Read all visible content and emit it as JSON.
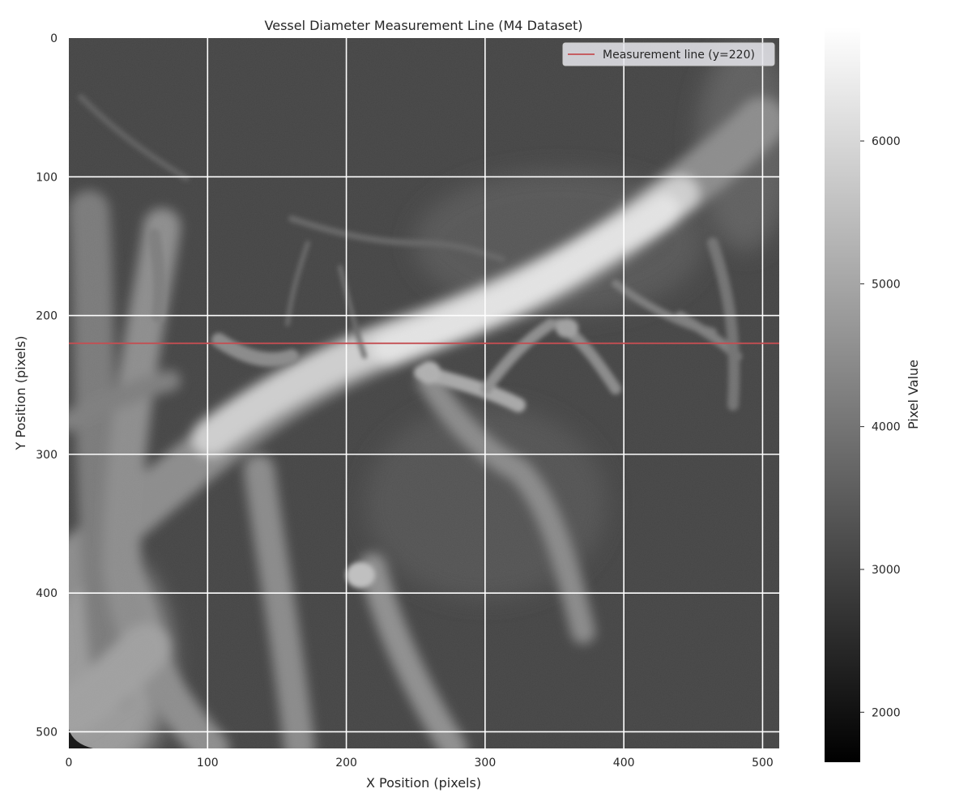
{
  "chart_data": {
    "type": "heatmap",
    "title": "Vessel Diameter Measurement Line (M4 Dataset)",
    "xlabel": "X Position (pixels)",
    "ylabel": "Y Position (pixels)",
    "xlim": [
      0,
      512
    ],
    "ylim": [
      512,
      0
    ],
    "x_ticks": [
      0,
      100,
      200,
      300,
      400,
      500
    ],
    "y_ticks": [
      0,
      100,
      200,
      300,
      400,
      500
    ],
    "grid": true,
    "image": "grayscale vessel angiography (M4 dataset)",
    "colormap": "gray",
    "overlay_line": {
      "type": "horizontal",
      "y": 220,
      "color": "#c44e52"
    },
    "legend": {
      "position": "upper-right",
      "entries": [
        "Measurement line (y=220)"
      ]
    },
    "colorbar": {
      "label": "Pixel Value",
      "range": [
        1650,
        6800
      ],
      "ticks": [
        2000,
        3000,
        4000,
        5000,
        6000
      ]
    }
  }
}
